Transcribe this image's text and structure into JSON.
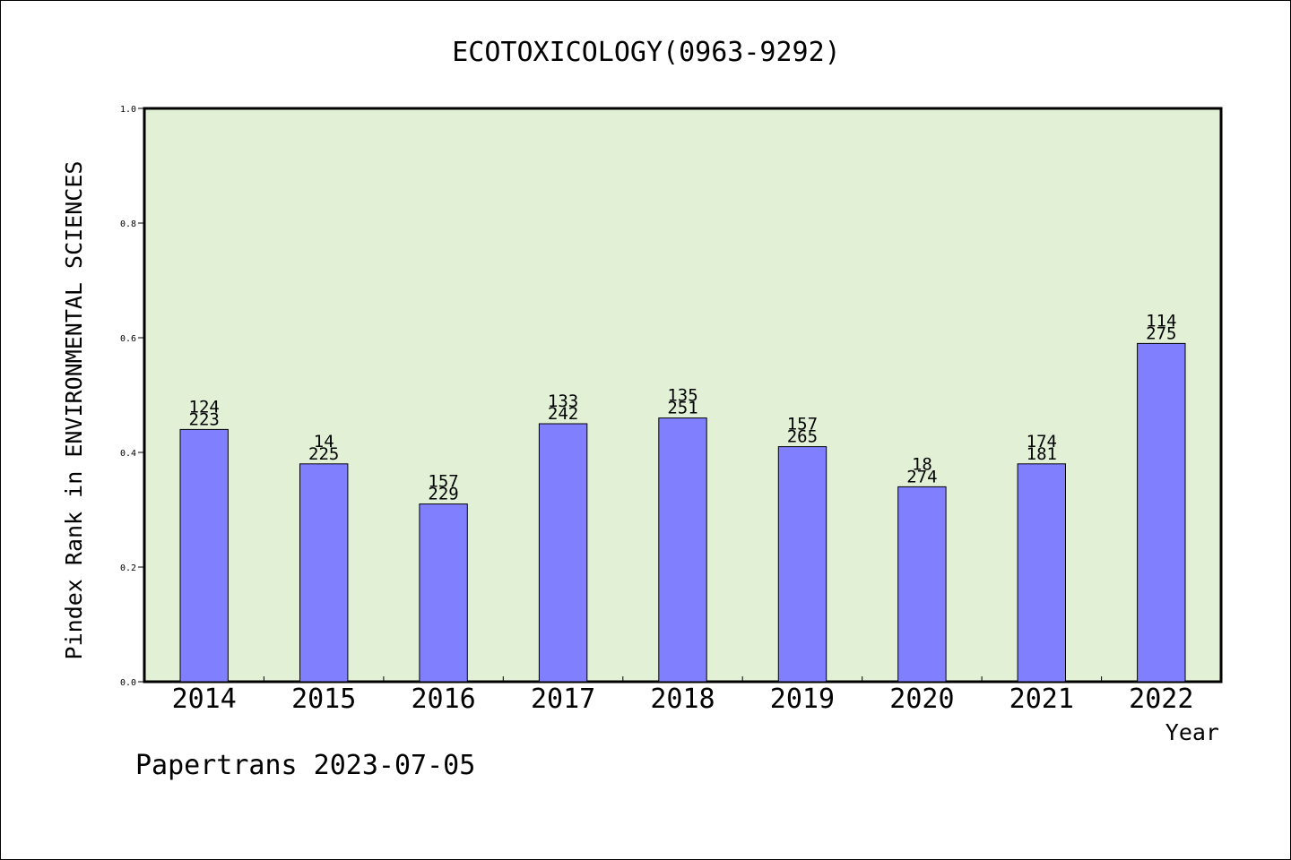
{
  "chart_data": {
    "type": "bar",
    "title": "ECOTOXICOLOGY(0963-9292)",
    "xlabel": "Year",
    "ylabel": "Pindex Rank in ENVIRONMENTAL SCIENCES",
    "ylim": [
      0,
      1.0
    ],
    "yticks": [
      "0.0",
      "0.2",
      "0.4",
      "0.6",
      "0.8",
      "1.0"
    ],
    "grid": false,
    "categories": [
      "2014",
      "2015",
      "2016",
      "2017",
      "2018",
      "2019",
      "2020",
      "2021",
      "2022"
    ],
    "values": [
      0.44,
      0.38,
      0.31,
      0.45,
      0.46,
      0.41,
      0.34,
      0.38,
      0.59
    ],
    "labels_top": [
      "124",
      "14",
      "157",
      "133",
      "135",
      "157",
      "18",
      "174",
      "114"
    ],
    "labels_bottom": [
      "223",
      "225",
      "229",
      "242",
      "251",
      "265",
      "274",
      "181",
      "275"
    ],
    "watermark": "Papertrans 2023-07-05",
    "colors": {
      "plot_background": "#e2f0d6",
      "bar_fill": "#8080ff",
      "bar_stroke": "#000000"
    }
  }
}
